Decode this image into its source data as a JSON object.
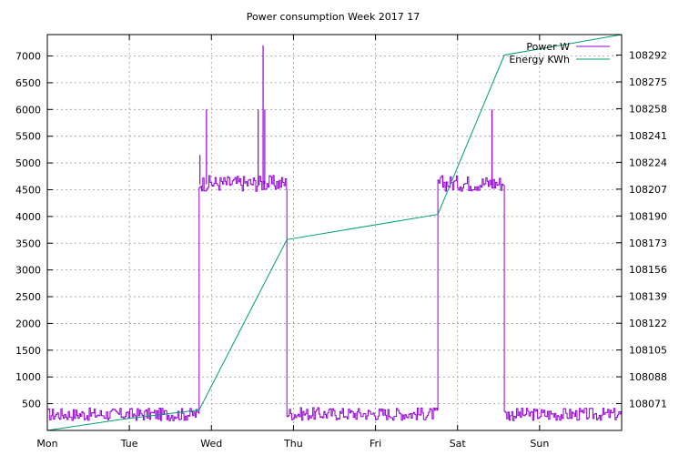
{
  "chart_data": {
    "type": "line",
    "title": "Power consumption Week 2017 17",
    "grid": true,
    "legend_position": "top-right",
    "x": {
      "tick_labels": [
        "Mon",
        "Tue",
        "Wed",
        "Thu",
        "Fri",
        "Sat",
        "Sun"
      ],
      "range_days": [
        0,
        7
      ]
    },
    "y_left": {
      "ylim": [
        0,
        7400
      ],
      "ticks": [
        500,
        1000,
        1500,
        2000,
        2500,
        3000,
        3500,
        4000,
        4500,
        5000,
        5500,
        6000,
        6500,
        7000
      ]
    },
    "y_right": {
      "ylim": [
        108054,
        108305
      ],
      "ticks": [
        108071,
        108088,
        108105,
        108122,
        108139,
        108156,
        108173,
        108190,
        108207,
        108224,
        108241,
        108258,
        108275,
        108292
      ]
    },
    "series": [
      {
        "name": "Power W",
        "axis": "left",
        "color": "#9400d3",
        "segments": [
          {
            "from": 0.0,
            "to": 1.85,
            "level": 300,
            "noise": 120
          },
          {
            "from": 1.85,
            "to": 2.92,
            "level": 4620,
            "noise": 150
          },
          {
            "from": 2.92,
            "to": 4.76,
            "level": 310,
            "noise": 120
          },
          {
            "from": 4.76,
            "to": 5.57,
            "level": 4620,
            "noise": 150
          },
          {
            "from": 5.57,
            "to": 7.0,
            "level": 300,
            "noise": 120
          }
        ],
        "spikes": [
          {
            "x": 1.86,
            "y": 5150
          },
          {
            "x": 1.94,
            "y": 6000
          },
          {
            "x": 2.57,
            "y": 6000
          },
          {
            "x": 2.63,
            "y": 7200
          },
          {
            "x": 2.65,
            "y": 6000
          },
          {
            "x": 5.42,
            "y": 6000
          }
        ]
      },
      {
        "name": "Energy KWh",
        "axis": "right",
        "color": "#009e73",
        "x": [
          0.0,
          0.9,
          1.85,
          2.92,
          4.76,
          5.57,
          7.0
        ],
        "y": [
          108054,
          108061,
          108067,
          108175,
          108191,
          108292,
          108305
        ]
      }
    ]
  }
}
